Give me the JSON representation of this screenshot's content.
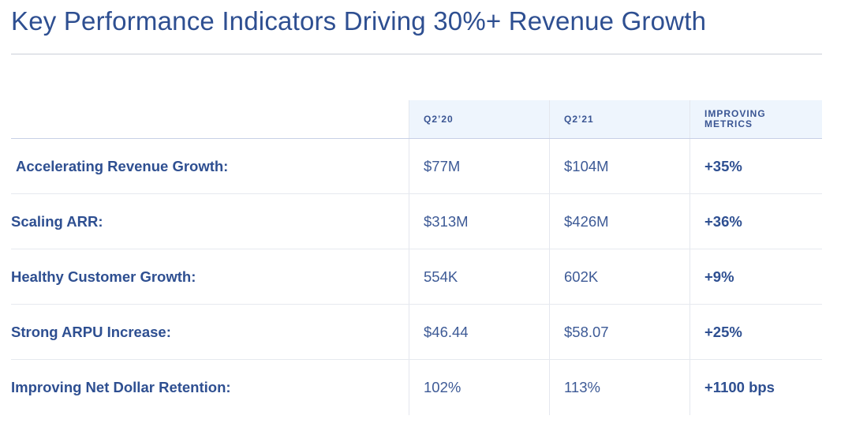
{
  "title": "Key Performance Indicators Driving 30%+ Revenue Growth",
  "table": {
    "headers": {
      "q2_20": "Q2’20",
      "q2_21": "Q2’21",
      "improving": "IMPROVING METRICS"
    },
    "rows": [
      {
        "label": "Accelerating Revenue Growth:",
        "q2_20": "$77M",
        "q2_21": "$104M",
        "improving": "+35%"
      },
      {
        "label": "Scaling ARR:",
        "q2_20": "$313M",
        "q2_21": "$426M",
        "improving": "+36%"
      },
      {
        "label": "Healthy Customer Growth:",
        "q2_20": "554K",
        "q2_21": "602K",
        "improving": "+9%"
      },
      {
        "label": "Strong ARPU Increase:",
        "q2_20": "$46.44",
        "q2_21": "$58.07",
        "improving": "+25%"
      },
      {
        "label": "Improving Net Dollar Retention:",
        "q2_20": "102%",
        "q2_21": "113%",
        "improving": "+1100 bps"
      }
    ]
  }
}
